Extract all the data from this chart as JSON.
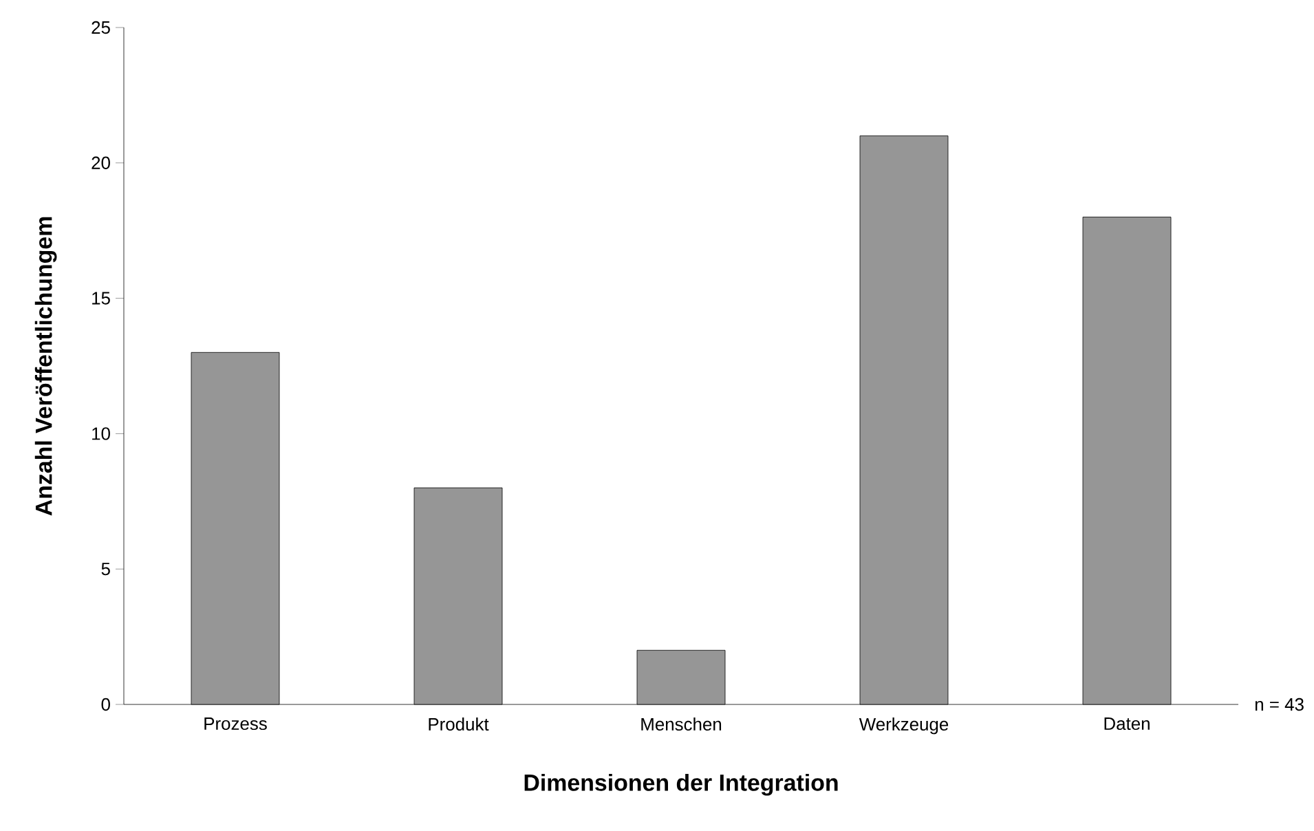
{
  "chart_data": {
    "type": "bar",
    "xlabel": "Dimensionen der Integration",
    "ylabel": "Anzahl Veröffentlichungem",
    "categories": [
      "Prozess",
      "Produkt",
      "Menschen",
      "Werkzeuge",
      "Daten"
    ],
    "values": [
      13,
      8,
      2,
      21,
      18
    ],
    "color": "#969696",
    "ylim": [
      0,
      25
    ],
    "yticks": [
      0,
      5,
      10,
      15,
      20,
      25
    ],
    "annotations": [
      "n = 43"
    ]
  }
}
